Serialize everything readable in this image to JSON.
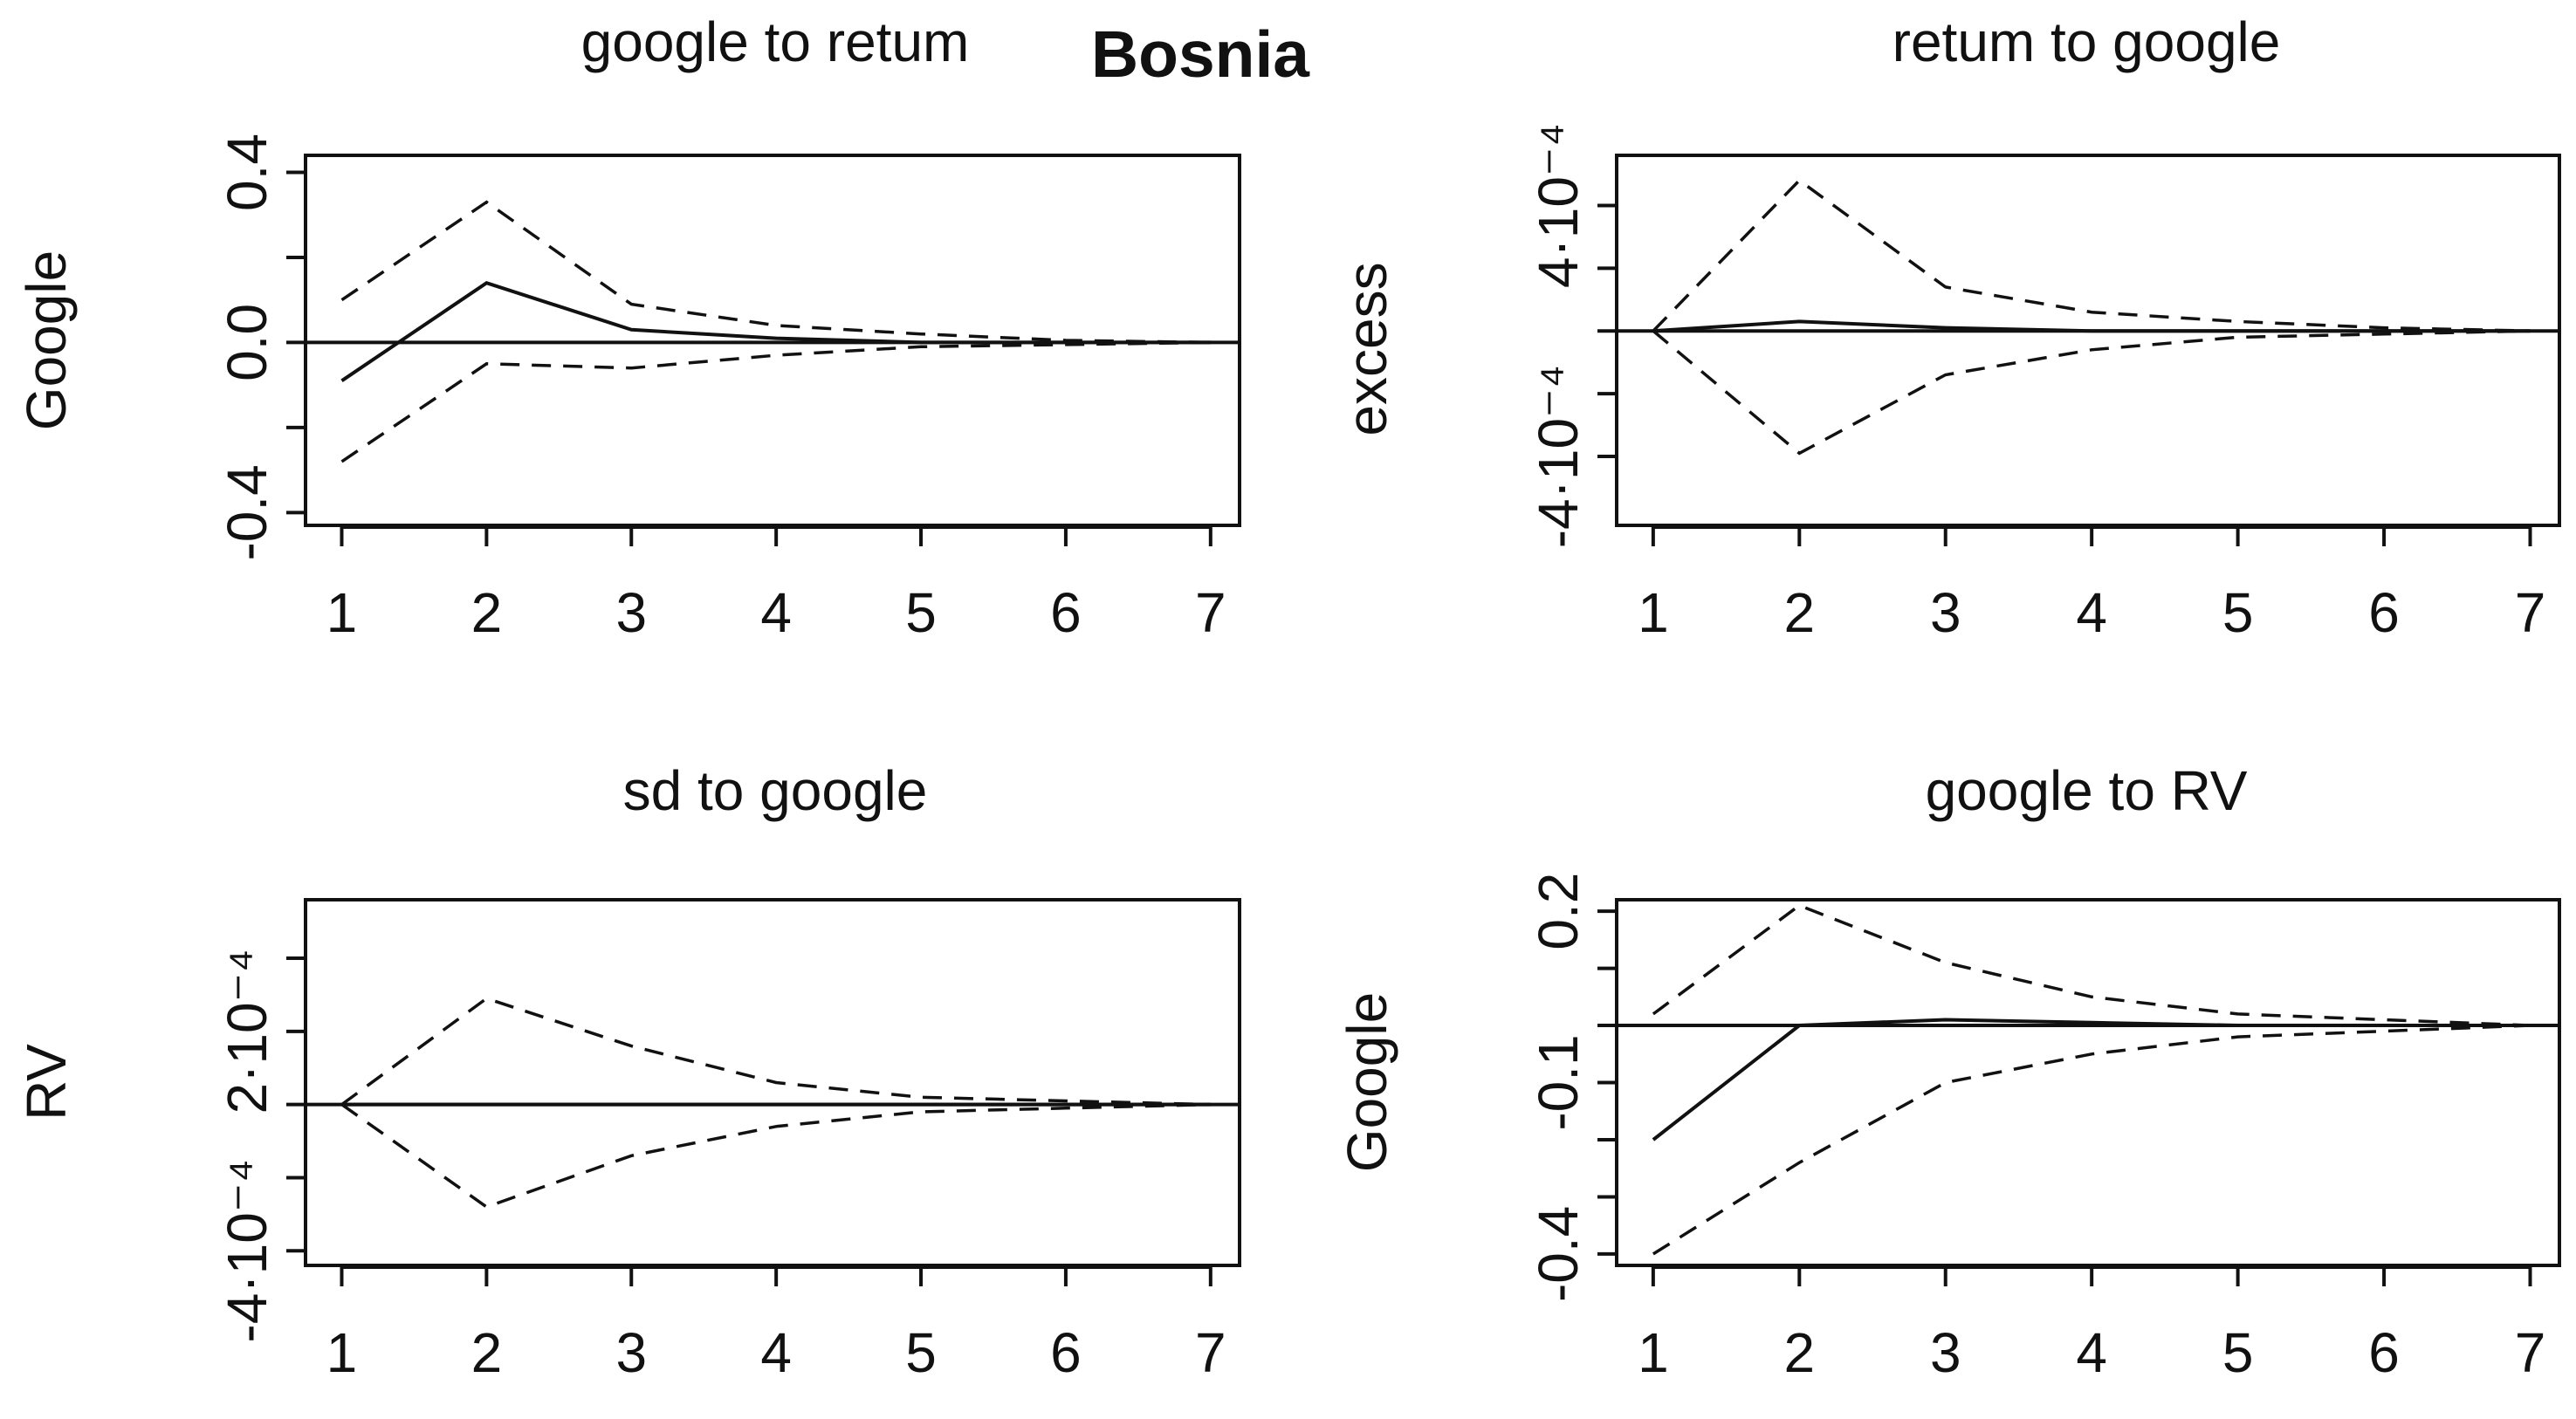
{
  "figure_title": "Bosnia",
  "chart_data": [
    {
      "type": "line",
      "title": "google to retum",
      "ylabel": "Google",
      "x": [
        1,
        2,
        3,
        4,
        5,
        6,
        7
      ],
      "xlim": [
        0.75,
        7.2
      ],
      "ylim": [
        -0.43,
        0.44
      ],
      "x_ticks": [
        "1",
        "2",
        "3",
        "4",
        "5",
        "6",
        "7"
      ],
      "y_ticks": [
        {
          "value": -0.4,
          "label": "-0.4"
        },
        {
          "value": 0.0,
          "label": "0.0"
        },
        {
          "value": 0.4,
          "label": "0.4"
        }
      ],
      "y_minor_ticks": [
        -0.2,
        0.2
      ],
      "zero_line": 0,
      "series": [
        {
          "style": "solid",
          "values": [
            -0.09,
            0.14,
            0.03,
            0.01,
            0.0,
            0.0,
            0.0
          ]
        },
        {
          "style": "dashed",
          "values": [
            0.1,
            0.33,
            0.09,
            0.04,
            0.02,
            0.005,
            0.0
          ]
        },
        {
          "style": "dashed",
          "values": [
            -0.28,
            -0.05,
            -0.06,
            -0.03,
            -0.01,
            -0.005,
            0.0
          ]
        }
      ]
    },
    {
      "type": "line",
      "title": "retum to google",
      "ylabel": "excess",
      "x": [
        1,
        2,
        3,
        4,
        5,
        6,
        7
      ],
      "xlim": [
        0.75,
        7.2
      ],
      "ylim": [
        -0.00062,
        0.00056
      ],
      "x_ticks": [
        "1",
        "2",
        "3",
        "4",
        "5",
        "6",
        "7"
      ],
      "y_ticks": [
        {
          "value": -0.0004,
          "label": "-4·10⁻⁴"
        },
        {
          "value": 0.0004,
          "label": "4·10⁻⁴"
        }
      ],
      "y_minor_ticks": [
        -0.0002,
        0.0,
        0.0002
      ],
      "zero_line": 0,
      "series": [
        {
          "style": "solid",
          "values": [
            0.0,
            3e-05,
            1e-05,
            0.0,
            0.0,
            0.0,
            0.0
          ]
        },
        {
          "style": "dashed",
          "values": [
            0.0,
            0.00048,
            0.00014,
            6e-05,
            3e-05,
            1e-05,
            0.0
          ]
        },
        {
          "style": "dashed",
          "values": [
            0.0,
            -0.00039,
            -0.00014,
            -6e-05,
            -2e-05,
            -1e-05,
            0.0
          ]
        }
      ]
    },
    {
      "type": "line",
      "title": "sd to google",
      "ylabel": "RV",
      "x": [
        1,
        2,
        3,
        4,
        5,
        6,
        7
      ],
      "xlim": [
        0.75,
        7.2
      ],
      "ylim": [
        -0.00044,
        0.00056
      ],
      "x_ticks": [
        "1",
        "2",
        "3",
        "4",
        "5",
        "6",
        "7"
      ],
      "y_ticks": [
        {
          "value": -0.0004,
          "label": "-4·10⁻⁴"
        },
        {
          "value": 0.0002,
          "label": "2·10⁻⁴"
        }
      ],
      "y_minor_ticks": [
        -0.0002,
        0.0,
        0.0004
      ],
      "zero_line": 0,
      "series": [
        {
          "style": "solid",
          "values": [
            0.0,
            0.0,
            0.0,
            0.0,
            0.0,
            0.0,
            0.0
          ]
        },
        {
          "style": "dashed",
          "values": [
            0.0,
            0.00029,
            0.00016,
            6e-05,
            2e-05,
            1e-05,
            0.0
          ]
        },
        {
          "style": "dashed",
          "values": [
            0.0,
            -0.00028,
            -0.00014,
            -6e-05,
            -2e-05,
            -1e-05,
            0.0
          ]
        }
      ]
    },
    {
      "type": "line",
      "title": "google to RV",
      "ylabel": "Google",
      "x": [
        1,
        2,
        3,
        4,
        5,
        6,
        7
      ],
      "xlim": [
        0.75,
        7.2
      ],
      "ylim": [
        -0.42,
        0.22
      ],
      "x_ticks": [
        "1",
        "2",
        "3",
        "4",
        "5",
        "6",
        "7"
      ],
      "y_ticks": [
        {
          "value": -0.4,
          "label": "-0.4"
        },
        {
          "value": -0.1,
          "label": "-0.1"
        },
        {
          "value": 0.2,
          "label": "0.2"
        }
      ],
      "y_minor_ticks": [
        -0.3,
        -0.2,
        0.0,
        0.1
      ],
      "zero_line": 0,
      "series": [
        {
          "style": "solid",
          "values": [
            -0.2,
            0.0,
            0.01,
            0.005,
            0.0,
            0.0,
            0.0
          ]
        },
        {
          "style": "dashed",
          "values": [
            0.02,
            0.21,
            0.11,
            0.05,
            0.02,
            0.01,
            0.0
          ]
        },
        {
          "style": "dashed",
          "values": [
            -0.4,
            -0.24,
            -0.1,
            -0.05,
            -0.02,
            -0.01,
            0.0
          ]
        }
      ]
    }
  ]
}
